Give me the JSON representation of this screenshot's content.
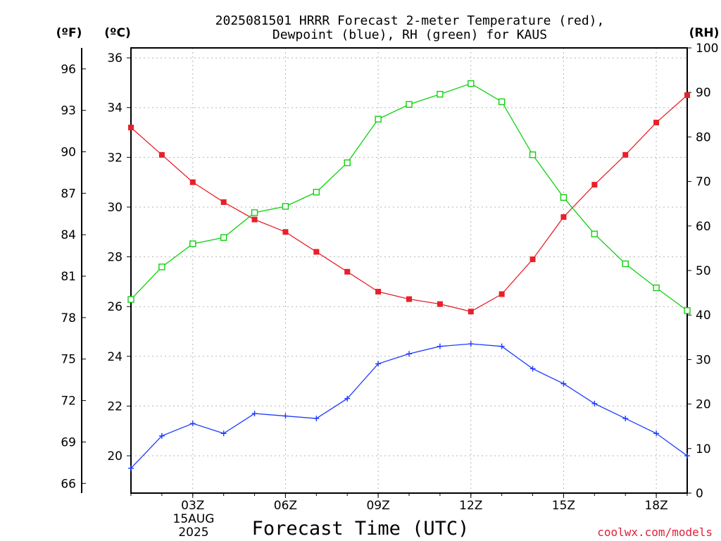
{
  "chart_data": {
    "type": "line",
    "title_line1": "2025081501 HRRR Forecast 2-meter Temperature (red),",
    "title_line2": "Dewpoint (blue), RH (green) for KAUS",
    "xlabel": "Forecast Time (UTC)",
    "unit_f": "(ºF)",
    "unit_c": "(ºC)",
    "unit_rh": "(RH)",
    "credit": "coolwx.com/models",
    "date_line1": "15AUG",
    "date_line2": "2025",
    "x_hours": [
      1,
      2,
      3,
      4,
      5,
      6,
      7,
      8,
      9,
      10,
      11,
      12,
      13,
      14,
      15,
      16,
      17,
      18,
      19
    ],
    "x_ticks": [
      {
        "hour": 3,
        "label": "03Z"
      },
      {
        "hour": 6,
        "label": "06Z"
      },
      {
        "hour": 9,
        "label": "09Z"
      },
      {
        "hour": 12,
        "label": "12Z"
      },
      {
        "hour": 15,
        "label": "15Z"
      },
      {
        "hour": 18,
        "label": "18Z"
      }
    ],
    "xlim": [
      1,
      19
    ],
    "ylim_c": [
      18.5,
      36.4
    ],
    "ylim_rh": [
      0,
      100
    ],
    "y_ticks_c": [
      "20",
      "22",
      "24",
      "26",
      "28",
      "30",
      "32",
      "34",
      "36"
    ],
    "y_ticks_f": [
      "66",
      "69",
      "72",
      "75",
      "78",
      "81",
      "84",
      "87",
      "90",
      "93",
      "96"
    ],
    "y_ticks_rh": [
      "0",
      "10",
      "20",
      "30",
      "40",
      "50",
      "60",
      "70",
      "80",
      "90",
      "100"
    ],
    "grid": true,
    "series": [
      {
        "name": "Temperature",
        "axis": "c",
        "color": "#e8202a",
        "marker": "filled-square",
        "values": [
          33.2,
          32.1,
          31.0,
          30.2,
          29.5,
          29.0,
          28.2,
          27.4,
          26.6,
          26.3,
          26.1,
          25.8,
          26.5,
          27.9,
          29.6,
          30.9,
          32.1,
          33.4,
          34.5
        ]
      },
      {
        "name": "Dewpoint",
        "axis": "c",
        "color": "#1e3cff",
        "marker": "plus",
        "values": [
          19.5,
          20.8,
          21.3,
          20.9,
          21.7,
          21.6,
          21.5,
          22.3,
          23.7,
          24.1,
          24.4,
          24.5,
          24.4,
          23.5,
          22.9,
          22.1,
          21.5,
          20.9,
          20.0
        ]
      },
      {
        "name": "RH",
        "axis": "rh",
        "color": "#10d010",
        "marker": "open-square",
        "values": [
          43.5,
          50.8,
          56.0,
          57.4,
          63.0,
          64.4,
          67.6,
          74.2,
          84.0,
          87.3,
          89.6,
          92.0,
          87.9,
          76.0,
          66.4,
          58.2,
          51.5,
          46.1,
          41.0
        ]
      }
    ]
  }
}
